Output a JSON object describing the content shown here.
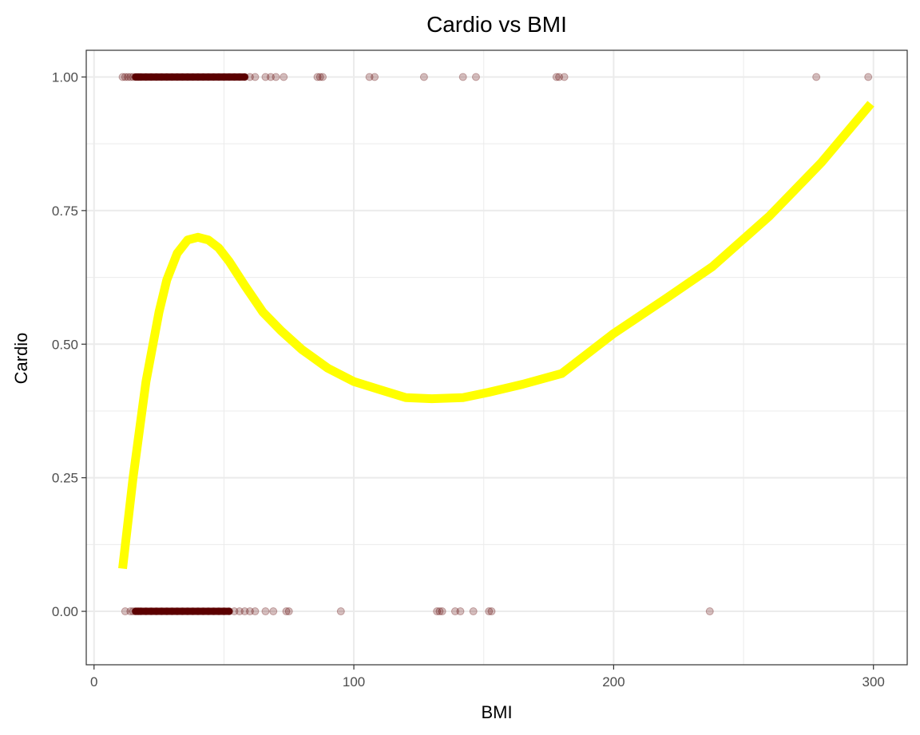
{
  "chart_data": {
    "type": "scatter",
    "title": "Cardio vs BMI",
    "xlabel": "BMI",
    "ylabel": "Cardio",
    "xlim": [
      -3,
      313
    ],
    "ylim": [
      -0.1,
      1.05
    ],
    "x_ticks": [
      0,
      100,
      200,
      300
    ],
    "x_tick_labels": [
      "0",
      "100",
      "200",
      "300"
    ],
    "y_ticks": [
      0,
      0.25,
      0.5,
      0.75,
      1.0
    ],
    "y_tick_labels": [
      "0.00",
      "0.25",
      "0.50",
      "0.75",
      "1.00"
    ],
    "x_minor_ticks": [
      50,
      150,
      250
    ],
    "y_minor_ticks": [
      0.125,
      0.375,
      0.625,
      0.875
    ],
    "grid": true,
    "legend": "none",
    "colors": {
      "points": "#5c0000",
      "smooth": "#ffff00",
      "grid": "#ebebeb",
      "panel_border": "#333333"
    },
    "series": [
      {
        "type": "scatter",
        "x_dense_range": [
          16,
          58
        ],
        "x": [
          11,
          12,
          13,
          14,
          15,
          16,
          17,
          18,
          20,
          22,
          24,
          26,
          28,
          30,
          32,
          34,
          36,
          38,
          40,
          42,
          44,
          46,
          48,
          50,
          52,
          54,
          56,
          58,
          60,
          62,
          66,
          68,
          70,
          73,
          86,
          87,
          88,
          106,
          108,
          127,
          142,
          147,
          178,
          179,
          181,
          278,
          298
        ],
        "y": [
          1,
          1,
          1,
          1,
          1,
          1,
          1,
          1,
          1,
          1,
          1,
          1,
          1,
          1,
          1,
          1,
          1,
          1,
          1,
          1,
          1,
          1,
          1,
          1,
          1,
          1,
          1,
          1,
          1,
          1,
          1,
          1,
          1,
          1,
          1,
          1,
          1,
          1,
          1,
          1,
          1,
          1,
          1,
          1,
          1,
          1,
          1
        ]
      },
      {
        "type": "scatter",
        "x_dense_range": [
          16,
          52
        ],
        "x": [
          12,
          14,
          15,
          16,
          17,
          18,
          20,
          22,
          24,
          26,
          28,
          30,
          32,
          34,
          36,
          38,
          40,
          42,
          44,
          46,
          48,
          50,
          52,
          54,
          56,
          58,
          60,
          62,
          66,
          69,
          74,
          75,
          95,
          132,
          133,
          134,
          139,
          141,
          146,
          152,
          153,
          237
        ],
        "y": [
          0,
          0,
          0,
          0,
          0,
          0,
          0,
          0,
          0,
          0,
          0,
          0,
          0,
          0,
          0,
          0,
          0,
          0,
          0,
          0,
          0,
          0,
          0,
          0,
          0,
          0,
          0,
          0,
          0,
          0,
          0,
          0,
          0,
          0,
          0,
          0,
          0,
          0,
          0,
          0,
          0,
          0
        ]
      },
      {
        "type": "line",
        "x": [
          11,
          15,
          20,
          25,
          28,
          32,
          36,
          40,
          44,
          48,
          52,
          58,
          65,
          72,
          80,
          90,
          100,
          110,
          120,
          130,
          142,
          152,
          165,
          180,
          200,
          220,
          238,
          260,
          280,
          299
        ],
        "y": [
          0.08,
          0.25,
          0.43,
          0.56,
          0.62,
          0.67,
          0.695,
          0.7,
          0.695,
          0.68,
          0.655,
          0.61,
          0.56,
          0.525,
          0.49,
          0.455,
          0.43,
          0.415,
          0.4,
          0.398,
          0.4,
          0.41,
          0.425,
          0.445,
          0.52,
          0.585,
          0.645,
          0.74,
          0.84,
          0.95
        ]
      }
    ]
  }
}
